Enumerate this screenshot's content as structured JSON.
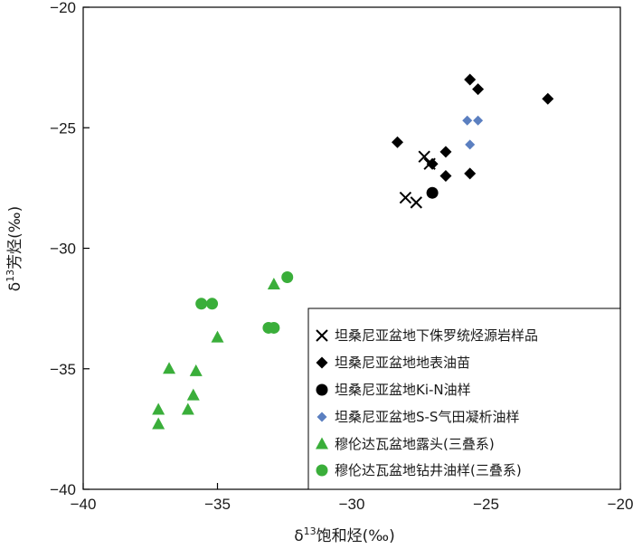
{
  "chart_data": {
    "type": "scatter",
    "title": "",
    "xlabel": {
      "prefix": "δ",
      "sup": "13",
      "main": "饱和烃(‰)"
    },
    "ylabel": {
      "prefix": "δ",
      "sup": "13",
      "main": "芳烃(‰)"
    },
    "xlim": [
      -40,
      -20
    ],
    "ylim": [
      -40,
      -20
    ],
    "xticks": [
      -40,
      -35,
      -30,
      -25,
      -20
    ],
    "yticks": [
      -40,
      -35,
      -30,
      -25,
      -20
    ],
    "xtick_labels": [
      "−40",
      "−35",
      "−30",
      "−25",
      "−20"
    ],
    "ytick_labels": [
      "−40",
      "−35",
      "−30",
      "−25",
      "−20"
    ],
    "grid": false,
    "legend_position": "bottom-right",
    "series": [
      {
        "name": "坦桑尼亚盆地下侏罗统烃源岩样品",
        "marker": "x",
        "color": "#000000",
        "points": [
          [
            -27.3,
            -26.2
          ],
          [
            -27.1,
            -26.5
          ],
          [
            -27.6,
            -28.1
          ],
          [
            -28.0,
            -27.9
          ]
        ]
      },
      {
        "name": "坦桑尼亚盆地地表油苗",
        "marker": "diamond",
        "color": "#000000",
        "points": [
          [
            -25.6,
            -23.0
          ],
          [
            -25.3,
            -23.4
          ],
          [
            -22.7,
            -23.8
          ],
          [
            -28.3,
            -25.6
          ],
          [
            -26.5,
            -26.0
          ],
          [
            -27.0,
            -26.5
          ],
          [
            -26.5,
            -27.0
          ],
          [
            -25.6,
            -26.9
          ]
        ]
      },
      {
        "name": "坦桑尼亚盆地Ki-N油样",
        "marker": "circle",
        "color": "#000000",
        "points": [
          [
            -27.0,
            -27.7
          ]
        ]
      },
      {
        "name": "坦桑尼亚盆地S-S气田凝析油样",
        "marker": "diamond-small",
        "color": "#5b7fc0",
        "points": [
          [
            -25.7,
            -24.7
          ],
          [
            -25.3,
            -24.7
          ],
          [
            -25.6,
            -25.7
          ]
        ]
      },
      {
        "name": "穆伦达瓦盆地露头(三叠系)",
        "marker": "triangle",
        "color": "#3aae3a",
        "points": [
          [
            -32.9,
            -31.5
          ],
          [
            -35.0,
            -33.7
          ],
          [
            -36.8,
            -35.0
          ],
          [
            -35.8,
            -35.1
          ],
          [
            -35.9,
            -36.1
          ],
          [
            -37.2,
            -36.7
          ],
          [
            -36.1,
            -36.7
          ],
          [
            -37.2,
            -37.3
          ]
        ]
      },
      {
        "name": "穆伦达瓦盆地钻井油样(三叠系)",
        "marker": "circle",
        "color": "#3aae3a",
        "points": [
          [
            -32.4,
            -31.2
          ],
          [
            -35.6,
            -32.3
          ],
          [
            -35.2,
            -32.3
          ],
          [
            -33.1,
            -33.3
          ],
          [
            -32.9,
            -33.3
          ]
        ]
      }
    ]
  }
}
